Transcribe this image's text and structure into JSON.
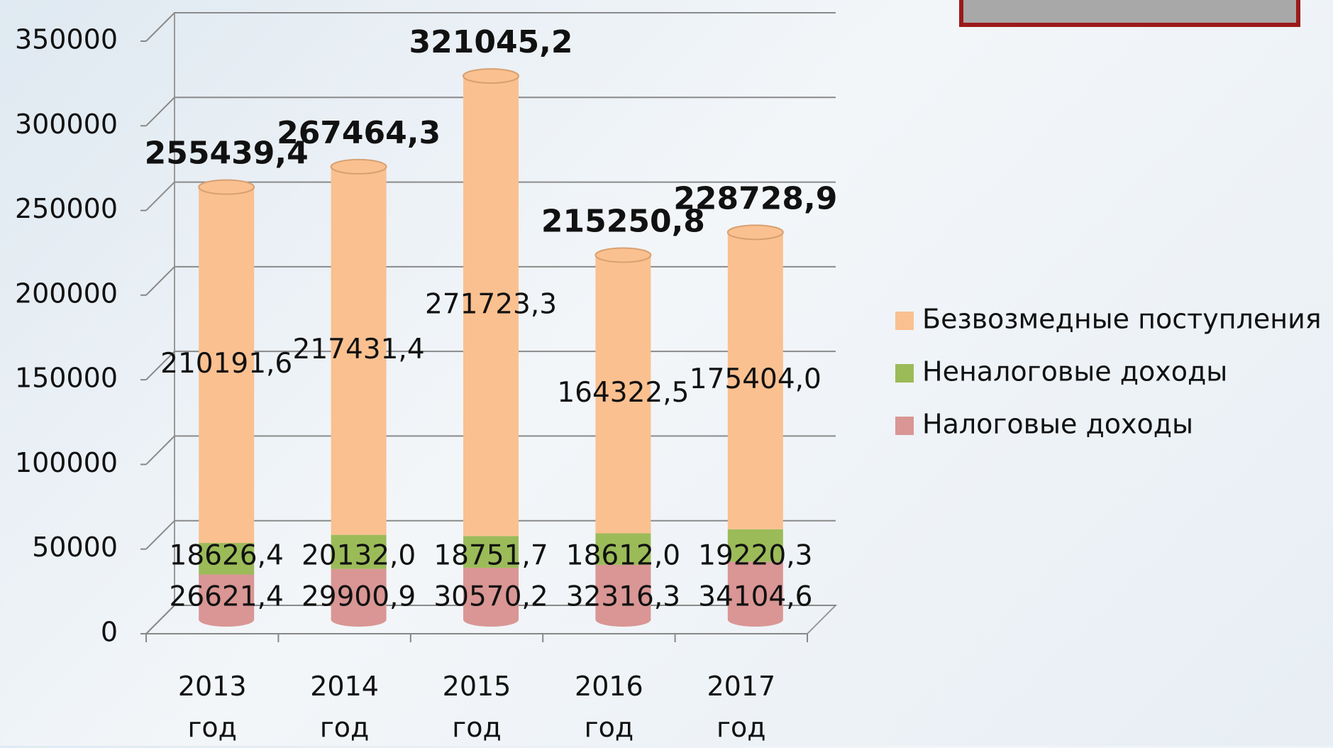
{
  "chart_data": {
    "type": "stacked-cylinder",
    "categories": [
      "2013 год",
      "2014 год",
      "2015 год",
      "2016 год",
      "2017 год"
    ],
    "series": [
      {
        "name": "Налоговые доходы",
        "color": "#d99694",
        "values": [
          26621.4,
          29900.9,
          30570.2,
          32316.3,
          34104.6
        ],
        "value_labels": [
          "26621,4",
          "29900,9",
          "30570,2",
          "32316,3",
          "34104,6"
        ]
      },
      {
        "name": "Неналоговые доходы",
        "color": "#9bbb59",
        "values": [
          18626.4,
          20132.0,
          18751.7,
          18612.0,
          19220.3
        ],
        "value_labels": [
          "18626,4",
          "20132,0",
          "18751,7",
          "18612,0",
          "19220,3"
        ]
      },
      {
        "name": "Безвозмедные поступления",
        "color": "#fac090",
        "values": [
          210191.6,
          217431.4,
          271723.3,
          164322.5,
          175404.0
        ],
        "value_labels": [
          "210191,6",
          "217431,4",
          "271723,3",
          "164322,5",
          "175404,0"
        ]
      }
    ],
    "totals": {
      "values": [
        255439.4,
        267464.3,
        321045.2,
        215250.8,
        228728.9
      ],
      "value_labels": [
        "255439,4",
        "267464,3",
        "321045,2",
        "215250,8",
        "228728,9"
      ]
    },
    "ylim": [
      0,
      350000
    ],
    "yticks": [
      0,
      50000,
      100000,
      150000,
      200000,
      250000,
      300000,
      350000
    ],
    "grid": true,
    "legend": "right"
  }
}
